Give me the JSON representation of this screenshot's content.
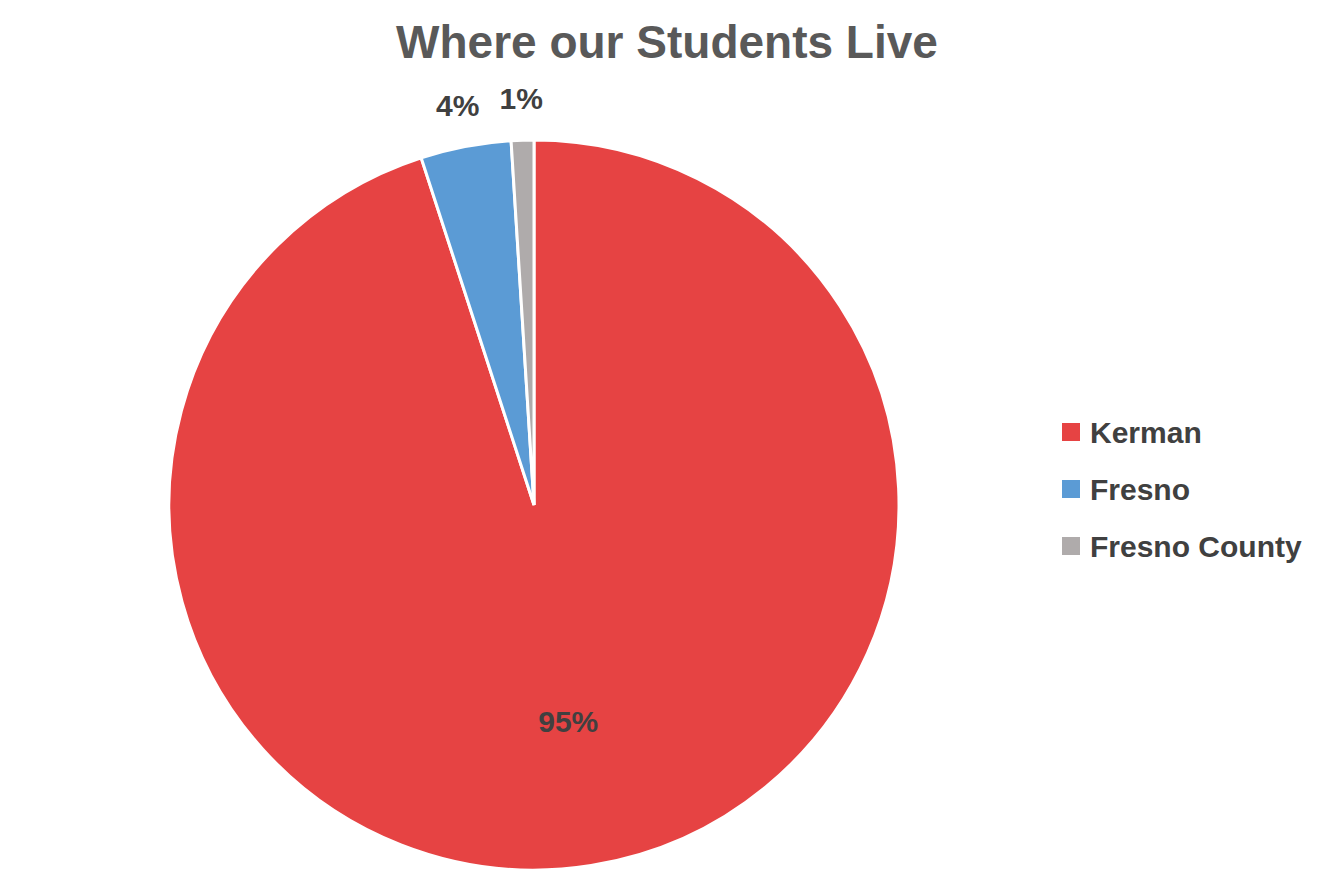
{
  "chart_data": {
    "type": "pie",
    "title": "Where our Students Live",
    "categories": [
      "Kerman",
      "Fresno",
      "Fresno County"
    ],
    "values": [
      95,
      4,
      1
    ],
    "value_labels": [
      "95%",
      "4%",
      "1%"
    ],
    "colors": [
      "#e64343",
      "#5b9bd5",
      "#afabab"
    ],
    "data_labels": true,
    "legend": "right"
  }
}
